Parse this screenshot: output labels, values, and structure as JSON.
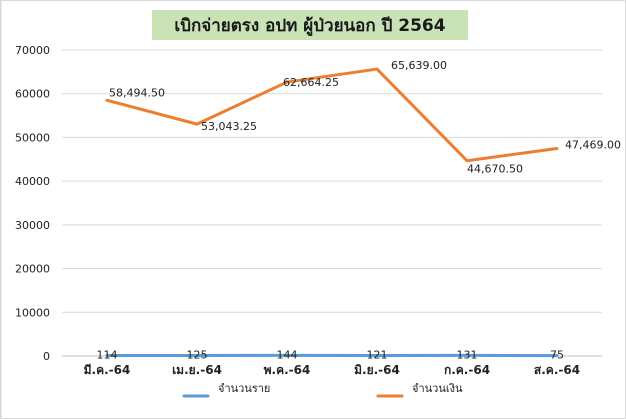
{
  "chart_data": {
    "type": "line",
    "title": "เบิกจ่ายตรง อปท ผู้ป่วยนอก ปี 2564",
    "categories": [
      "มี.ค.-64",
      "เม.ย.-64",
      "พ.ค.-64",
      "มิ.ย.-64",
      "ก.ค.-64",
      "ส.ค.-64"
    ],
    "ylim": [
      0,
      70000
    ],
    "yticks": [
      0,
      10000,
      20000,
      30000,
      40000,
      50000,
      60000,
      70000
    ],
    "grid": true,
    "legend_position": "bottom",
    "series": [
      {
        "name": "จำนวนราย",
        "color": "#5b9bd5",
        "values": [
          114,
          125,
          144,
          121,
          131,
          75
        ],
        "labels": [
          "114",
          "125",
          "144",
          "121",
          "131",
          "75"
        ]
      },
      {
        "name": "จำนวนเงิน",
        "color": "#ed7d31",
        "values": [
          58494.5,
          53043.25,
          62664.25,
          65639.0,
          44670.5,
          47469.0
        ],
        "labels": [
          "58,494.50",
          "53,043.25",
          "62,664.25",
          "65,639.00",
          "44,670.50",
          "47,469.00"
        ]
      }
    ]
  }
}
